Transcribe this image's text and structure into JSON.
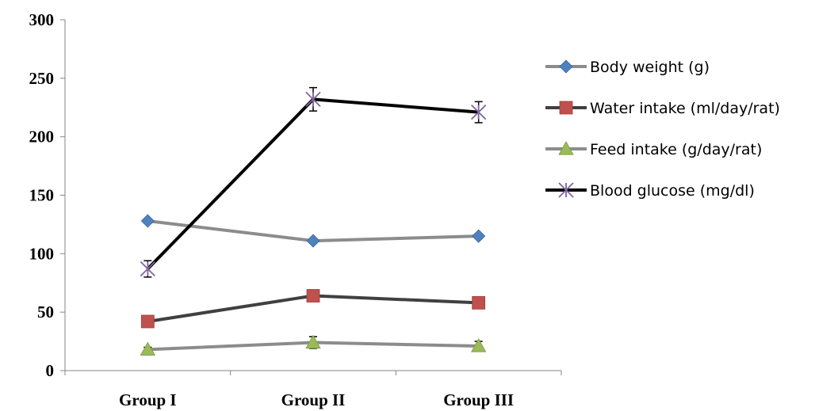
{
  "chart_data": {
    "type": "line",
    "title": "",
    "xlabel": "",
    "ylabel": "",
    "categories": [
      "Group I",
      "Group II",
      "Group III"
    ],
    "ylim": [
      0,
      300
    ],
    "yticks": [
      0,
      50,
      100,
      150,
      200,
      250,
      300
    ],
    "grid": false,
    "legend_position": "right",
    "series": [
      {
        "name": "Body weight (g)",
        "values": [
          128,
          111,
          115
        ],
        "error": [
          2,
          2,
          2
        ],
        "color": "#8c8c8c",
        "marker": "diamond",
        "marker_color": "#4f81bd"
      },
      {
        "name": "Water intake (ml/day/rat)",
        "values": [
          42,
          64,
          58
        ],
        "error": [
          2,
          2,
          2
        ],
        "color": "#404040",
        "marker": "square",
        "marker_color": "#c0504d"
      },
      {
        "name": "Feed intake (g/day/rat)",
        "values": [
          18,
          24,
          21
        ],
        "error": [
          2,
          5,
          4
        ],
        "color": "#8c8c8c",
        "marker": "triangle",
        "marker_color": "#9bbb59"
      },
      {
        "name": "Blood glucose (mg/dl)",
        "values": [
          87,
          232,
          221
        ],
        "error": [
          7,
          10,
          9
        ],
        "color": "#000000",
        "marker": "x-star",
        "marker_color": "#8064a2"
      }
    ]
  }
}
